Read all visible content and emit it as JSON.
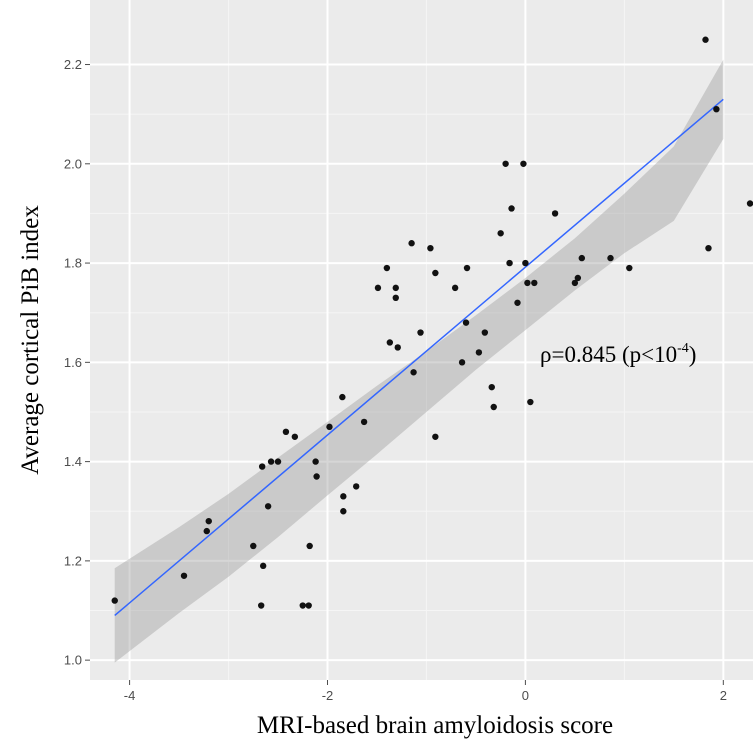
{
  "chart_data": {
    "type": "scatter",
    "title": "",
    "xlabel": "MRI-based brain amyloidosis score",
    "ylabel": "Average cortical PiB index",
    "xlim": [
      -4.4,
      2.3
    ],
    "ylim": [
      0.96,
      2.33
    ],
    "xticks": [
      -4,
      -2,
      0,
      2
    ],
    "xtick_labels": [
      "-4",
      "-2",
      "0",
      "2"
    ],
    "yticks": [
      1.0,
      1.2,
      1.4,
      1.6,
      1.8,
      2.0,
      2.2
    ],
    "ytick_labels": [
      "1.0",
      "1.2",
      "1.4",
      "1.6",
      "1.8",
      "2.0",
      "2.2"
    ],
    "grid": true,
    "legend": "none",
    "annotation": {
      "prefix": "ρ=0.845 (p<10",
      "superscript": "-4",
      "suffix": ")"
    },
    "points": [
      {
        "x": -4.15,
        "y": 1.12
      },
      {
        "x": -3.45,
        "y": 1.17
      },
      {
        "x": -3.2,
        "y": 1.28
      },
      {
        "x": -3.22,
        "y": 1.26
      },
      {
        "x": -2.75,
        "y": 1.23
      },
      {
        "x": -2.65,
        "y": 1.19
      },
      {
        "x": -2.67,
        "y": 1.11
      },
      {
        "x": -2.66,
        "y": 1.39
      },
      {
        "x": -2.57,
        "y": 1.4
      },
      {
        "x": -2.6,
        "y": 1.31
      },
      {
        "x": -2.5,
        "y": 1.4
      },
      {
        "x": -2.42,
        "y": 1.46
      },
      {
        "x": -2.33,
        "y": 1.45
      },
      {
        "x": -2.25,
        "y": 1.11
      },
      {
        "x": -2.19,
        "y": 1.11
      },
      {
        "x": -2.18,
        "y": 1.23
      },
      {
        "x": -2.12,
        "y": 1.4
      },
      {
        "x": -2.11,
        "y": 1.37
      },
      {
        "x": -1.98,
        "y": 1.47
      },
      {
        "x": -1.85,
        "y": 1.53
      },
      {
        "x": -1.84,
        "y": 1.33
      },
      {
        "x": -1.84,
        "y": 1.3
      },
      {
        "x": -1.71,
        "y": 1.35
      },
      {
        "x": -1.63,
        "y": 1.48
      },
      {
        "x": -1.49,
        "y": 1.75
      },
      {
        "x": -1.4,
        "y": 1.79
      },
      {
        "x": -1.37,
        "y": 1.64
      },
      {
        "x": -1.31,
        "y": 1.73
      },
      {
        "x": -1.31,
        "y": 1.75
      },
      {
        "x": -1.29,
        "y": 1.63
      },
      {
        "x": -1.15,
        "y": 1.84
      },
      {
        "x": -1.13,
        "y": 1.58
      },
      {
        "x": -1.06,
        "y": 1.66
      },
      {
        "x": -0.96,
        "y": 1.83
      },
      {
        "x": -0.91,
        "y": 1.78
      },
      {
        "x": -0.91,
        "y": 1.45
      },
      {
        "x": -0.71,
        "y": 1.75
      },
      {
        "x": -0.64,
        "y": 1.6
      },
      {
        "x": -0.6,
        "y": 1.68
      },
      {
        "x": -0.59,
        "y": 1.79
      },
      {
        "x": -0.47,
        "y": 1.62
      },
      {
        "x": -0.41,
        "y": 1.66
      },
      {
        "x": -0.34,
        "y": 1.55
      },
      {
        "x": -0.32,
        "y": 1.51
      },
      {
        "x": -0.25,
        "y": 1.86
      },
      {
        "x": -0.2,
        "y": 2.0
      },
      {
        "x": -0.16,
        "y": 1.8
      },
      {
        "x": -0.14,
        "y": 1.91
      },
      {
        "x": -0.08,
        "y": 1.72
      },
      {
        "x": -0.02,
        "y": 2.0
      },
      {
        "x": 0.0,
        "y": 1.8
      },
      {
        "x": 0.02,
        "y": 1.76
      },
      {
        "x": 0.05,
        "y": 1.52
      },
      {
        "x": 0.09,
        "y": 1.76
      },
      {
        "x": 0.3,
        "y": 1.9
      },
      {
        "x": 0.5,
        "y": 1.76
      },
      {
        "x": 0.53,
        "y": 1.77
      },
      {
        "x": 0.57,
        "y": 1.81
      },
      {
        "x": 0.86,
        "y": 1.81
      },
      {
        "x": 1.05,
        "y": 1.79
      },
      {
        "x": 1.82,
        "y": 2.25
      },
      {
        "x": 1.85,
        "y": 1.83
      },
      {
        "x": 1.93,
        "y": 2.11
      },
      {
        "x": 2.27,
        "y": 1.92
      }
    ],
    "fit_line": {
      "x": [
        -4.15,
        2.0
      ],
      "y": [
        1.09,
        2.13
      ]
    },
    "ci_band": {
      "x": [
        -4.15,
        -3.5,
        -3.0,
        -2.5,
        -2.0,
        -1.5,
        -1.0,
        -0.5,
        0.0,
        0.5,
        1.0,
        1.5,
        2.0
      ],
      "upper": [
        1.185,
        1.268,
        1.335,
        1.408,
        1.48,
        1.553,
        1.622,
        1.695,
        1.77,
        1.85,
        1.94,
        2.035,
        2.21
      ],
      "lower": [
        0.995,
        1.095,
        1.168,
        1.248,
        1.332,
        1.415,
        1.5,
        1.585,
        1.665,
        1.745,
        1.82,
        1.885,
        2.05
      ]
    },
    "colors": {
      "panel_bg": "#ebebeb",
      "grid_major": "#ffffff",
      "grid_minor": "#f5f5f5",
      "point": "#111111",
      "fit_line": "#3366ff",
      "ci_band": "#999999",
      "axis_text": "#4d4d4d",
      "label_text": "#000000"
    }
  }
}
